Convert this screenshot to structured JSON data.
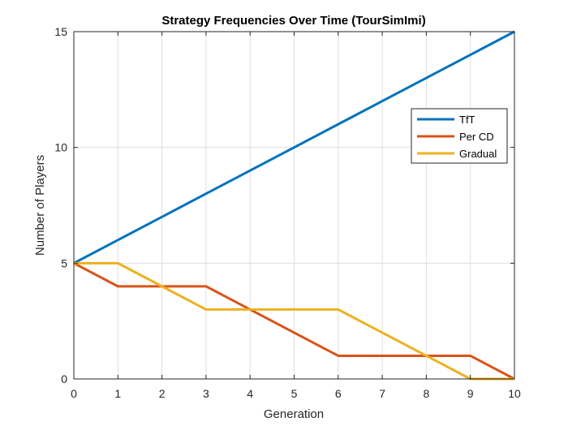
{
  "chart_data": {
    "type": "line",
    "title": "Strategy Frequencies Over Time (TourSimImi)",
    "xlabel": "Generation",
    "ylabel": "Number of Players",
    "x": [
      0,
      1,
      2,
      3,
      4,
      5,
      6,
      7,
      8,
      9,
      10
    ],
    "xlim": [
      0,
      10
    ],
    "ylim": [
      0,
      15
    ],
    "xticks": [
      0,
      1,
      2,
      3,
      4,
      5,
      6,
      7,
      8,
      9,
      10
    ],
    "xtick_labels": [
      "0",
      "1",
      "2",
      "3",
      "4",
      "5",
      "6",
      "7",
      "8",
      "9",
      "10"
    ],
    "yticks": [
      0,
      5,
      10,
      15
    ],
    "ytick_labels": [
      "0",
      "5",
      "10",
      "15"
    ],
    "grid": true,
    "legend_position": "top-right",
    "series": [
      {
        "name": "TfT",
        "color": "#0072bd",
        "values": [
          5,
          6,
          7,
          8,
          9,
          10,
          11,
          12,
          13,
          14,
          15
        ]
      },
      {
        "name": "Per CD",
        "color": "#d95319",
        "values": [
          5,
          4,
          4,
          4,
          3,
          2,
          1,
          1,
          1,
          1,
          0
        ]
      },
      {
        "name": "Gradual",
        "color": "#edb120",
        "values": [
          5,
          5,
          4,
          3,
          3,
          3,
          3,
          2,
          1,
          0,
          0
        ]
      }
    ]
  }
}
